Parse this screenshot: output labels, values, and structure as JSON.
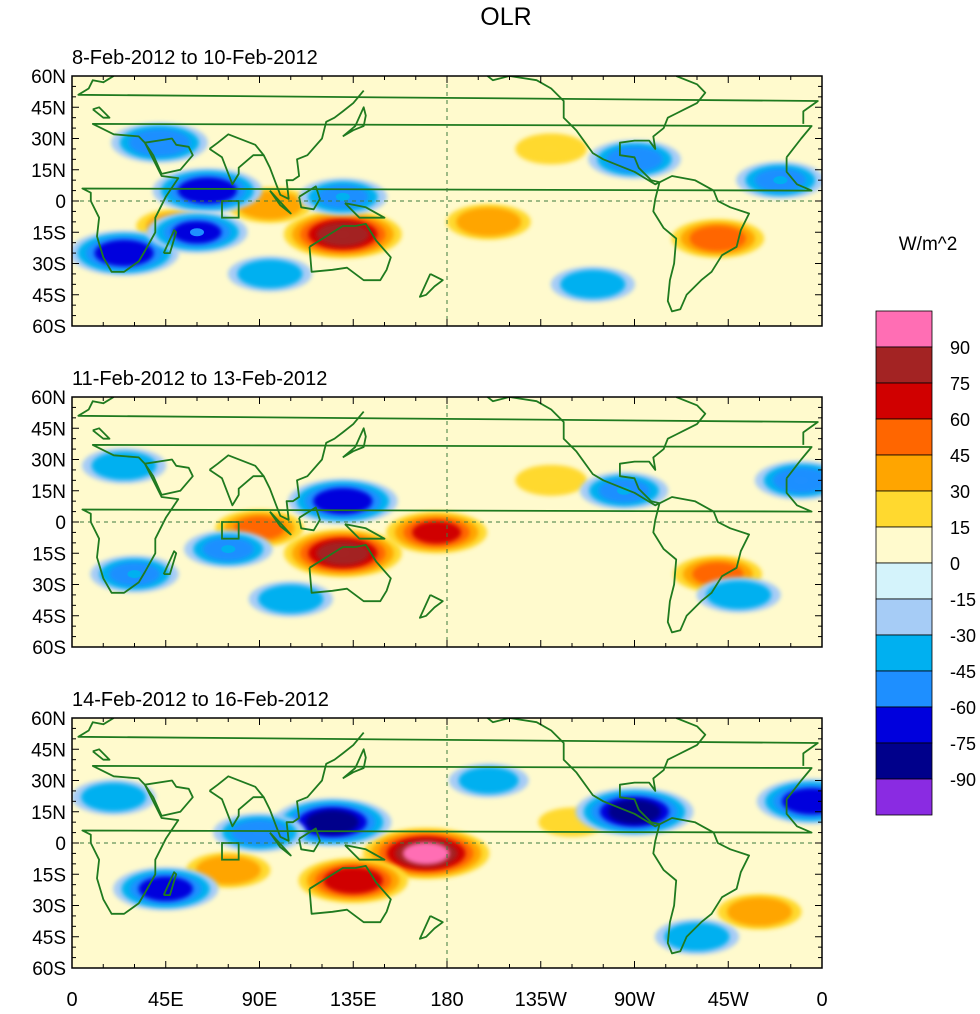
{
  "chart_data": {
    "type": "heatmap",
    "title": "OLR",
    "colorbar": {
      "unit_label": "W/m^2",
      "levels": [
        "90",
        "75",
        "60",
        "45",
        "30",
        "15",
        "0",
        "-15",
        "-30",
        "-45",
        "-60",
        "-75",
        "-90"
      ],
      "colors": [
        "#ff6eb4",
        "#a32323",
        "#d00000",
        "#ff6600",
        "#ffa500",
        "#ffd92f",
        "#fffacd",
        "#d4f3fb",
        "#a6ccf6",
        "#00b0f0",
        "#1e8fff",
        "#0000dd",
        "#00008b",
        "#8a2be2"
      ]
    },
    "x_ticks": [
      "0",
      "45E",
      "90E",
      "135E",
      "180",
      "135W",
      "90W",
      "45W",
      "0"
    ],
    "y_ticks": [
      "60N",
      "45N",
      "30N",
      "15N",
      "0",
      "15S",
      "30S",
      "45S",
      "60S"
    ],
    "xlim_deg_east": [
      0,
      360
    ],
    "ylim_deg_north": [
      -60,
      60
    ],
    "panels": [
      {
        "subtitle": "8-Feb-2012 to 10-Feb-2012",
        "anomalies": [
          {
            "lon": 130,
            "lat": -16,
            "value": 80
          },
          {
            "lon": 95,
            "lat": -2,
            "value": 40
          },
          {
            "lon": 50,
            "lat": -12,
            "value": 35
          },
          {
            "lon": 200,
            "lat": -10,
            "value": 40
          },
          {
            "lon": 230,
            "lat": 25,
            "value": 25
          },
          {
            "lon": 310,
            "lat": -18,
            "value": 50
          },
          {
            "lon": 130,
            "lat": 2,
            "value": -45
          },
          {
            "lon": 25,
            "lat": -25,
            "value": -70
          },
          {
            "lon": 65,
            "lat": 5,
            "value": -70
          },
          {
            "lon": 60,
            "lat": -15,
            "value": -60
          },
          {
            "lon": 42,
            "lat": 28,
            "value": -55
          },
          {
            "lon": 270,
            "lat": 20,
            "value": -50
          },
          {
            "lon": 340,
            "lat": 10,
            "value": -45
          },
          {
            "lon": 95,
            "lat": -35,
            "value": -40
          },
          {
            "lon": 250,
            "lat": -40,
            "value": -40
          }
        ]
      },
      {
        "subtitle": "11-Feb-2012 to 13-Feb-2012",
        "anomalies": [
          {
            "lon": 130,
            "lat": -15,
            "value": 80
          },
          {
            "lon": 175,
            "lat": -5,
            "value": 60
          },
          {
            "lon": 90,
            "lat": -3,
            "value": 45
          },
          {
            "lon": 310,
            "lat": -25,
            "value": 45
          },
          {
            "lon": 230,
            "lat": 20,
            "value": 25
          },
          {
            "lon": 130,
            "lat": 10,
            "value": -70
          },
          {
            "lon": 30,
            "lat": -25,
            "value": -45
          },
          {
            "lon": 75,
            "lat": -13,
            "value": -45
          },
          {
            "lon": 350,
            "lat": 20,
            "value": -50
          },
          {
            "lon": 265,
            "lat": 15,
            "value": -45
          },
          {
            "lon": 320,
            "lat": -35,
            "value": -40
          },
          {
            "lon": 105,
            "lat": -37,
            "value": -40
          },
          {
            "lon": 25,
            "lat": 27,
            "value": -40
          }
        ]
      },
      {
        "subtitle": "14-Feb-2012 to 16-Feb-2012",
        "anomalies": [
          {
            "lon": 170,
            "lat": -5,
            "value": 90
          },
          {
            "lon": 135,
            "lat": -18,
            "value": 70
          },
          {
            "lon": 75,
            "lat": -13,
            "value": 40
          },
          {
            "lon": 330,
            "lat": -33,
            "value": 40
          },
          {
            "lon": 240,
            "lat": 10,
            "value": 20
          },
          {
            "lon": 125,
            "lat": 10,
            "value": -80
          },
          {
            "lon": 270,
            "lat": 15,
            "value": -80
          },
          {
            "lon": 45,
            "lat": -22,
            "value": -65
          },
          {
            "lon": 355,
            "lat": 20,
            "value": -70
          },
          {
            "lon": 90,
            "lat": 5,
            "value": -50
          },
          {
            "lon": 20,
            "lat": 22,
            "value": -40
          },
          {
            "lon": 200,
            "lat": 30,
            "value": -35
          },
          {
            "lon": 300,
            "lat": -45,
            "value": -40
          }
        ]
      }
    ]
  }
}
